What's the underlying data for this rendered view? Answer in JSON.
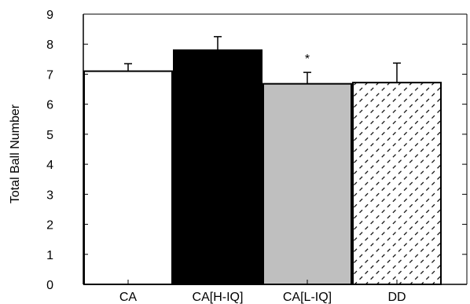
{
  "chart_data": {
    "type": "bar",
    "title": "",
    "xlabel": "",
    "ylabel": "Total Ball Number",
    "ylim": [
      0,
      9
    ],
    "yticks": [
      0,
      1,
      2,
      3,
      4,
      5,
      6,
      7,
      8,
      9
    ],
    "grid": false,
    "categories": [
      "CA",
      "CA[H-IQ]",
      "CA[L-IQ]",
      "DD"
    ],
    "values": [
      7.1,
      7.8,
      6.68,
      6.72
    ],
    "error": [
      0.25,
      0.45,
      0.38,
      0.65
    ],
    "fills": [
      "white",
      "black",
      "gray",
      "hatch"
    ],
    "colors": {
      "white": "#ffffff",
      "black": "#000000",
      "gray": "#bfbfbf",
      "stroke": "#000000"
    },
    "annotations": [
      {
        "category": "CA[L-IQ]",
        "text": "*"
      }
    ]
  }
}
